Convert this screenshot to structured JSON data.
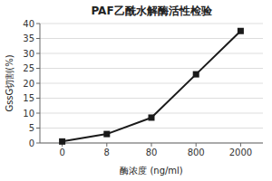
{
  "chart_data": {
    "type": "line",
    "title": "PAF乙酰水解酶活性检验",
    "xlabel": "酶浓度 (ng/ml)",
    "ylabel": "GssG切割(%)",
    "categories": [
      "0",
      "8",
      "80",
      "800",
      "2000"
    ],
    "values": [
      0.5,
      3.0,
      8.5,
      23.0,
      37.5
    ],
    "color": "#1a1a1a",
    "marker": "square",
    "ylim": [
      0,
      40
    ],
    "yticks": [
      0,
      5,
      10,
      15,
      20,
      25,
      30,
      35,
      40
    ],
    "grid": true
  }
}
